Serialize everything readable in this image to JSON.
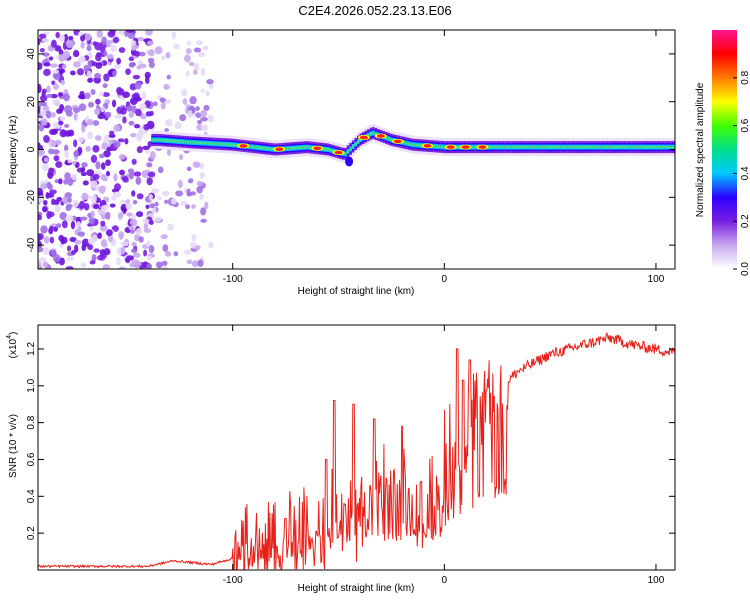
{
  "page": {
    "title": "C2E4.2026.052.23.13.E06"
  },
  "chart_data": [
    {
      "type": "heatmap",
      "id": "spectrogram",
      "title": "C2E4.2026.052.23.13.E06",
      "xlabel": "Height of straight line (km)",
      "ylabel": "Frequency (Hz)",
      "xlim": [
        -192,
        109
      ],
      "ylim": [
        -50,
        50
      ],
      "xticks": [
        -100,
        0,
        100
      ],
      "xtick_labels": [
        "-100",
        "0",
        "100"
      ],
      "yticks": [
        -40,
        -20,
        0,
        20,
        40
      ],
      "ytick_labels": [
        "-40",
        "-20",
        "0",
        "20",
        "40"
      ],
      "colorbar": {
        "label": "Normalized spectral amplitude",
        "range": [
          0.0,
          1.0
        ],
        "ticks": [
          0.0,
          0.2,
          0.4,
          0.6,
          0.8
        ],
        "tick_labels": [
          "0.0",
          "0.2",
          "0.4",
          "0.6",
          "0.8"
        ],
        "colors": [
          "#ffffff",
          "#c9a8ee",
          "#7a1fe0",
          "#2a00ff",
          "#00c8ff",
          "#00e08a",
          "#40ff00",
          "#ffff00",
          "#ff7a00",
          "#ff0000",
          "#ff1493"
        ]
      },
      "ridge_center_hz": [
        {
          "x": -135,
          "y": 4
        },
        {
          "x": -120,
          "y": 3
        },
        {
          "x": -100,
          "y": 2
        },
        {
          "x": -80,
          "y": 0
        },
        {
          "x": -65,
          "y": 1
        },
        {
          "x": -55,
          "y": 0
        },
        {
          "x": -47,
          "y": -2
        },
        {
          "x": -40,
          "y": 4
        },
        {
          "x": -34,
          "y": 7
        },
        {
          "x": -25,
          "y": 4
        },
        {
          "x": -15,
          "y": 2
        },
        {
          "x": 0,
          "y": 1
        },
        {
          "x": 20,
          "y": 1
        },
        {
          "x": 50,
          "y": 1
        },
        {
          "x": 109,
          "y": 1
        }
      ],
      "noise_region_km": [
        -192,
        -110
      ]
    },
    {
      "type": "line",
      "id": "snr",
      "xlabel": "Height of straight line (km)",
      "ylabel": "SNR (10 * v/v)",
      "yscale_label": "(x10",
      "yscale_exponent": "4",
      "xlim": [
        -192,
        109
      ],
      "ylim": [
        0.0,
        1.33
      ],
      "xticks": [
        -100,
        0,
        100
      ],
      "xtick_labels": [
        "-100",
        "0",
        "100"
      ],
      "yticks": [
        0.2,
        0.4,
        0.6,
        0.8,
        1.0,
        1.2
      ],
      "ytick_labels": [
        "0.2",
        "0.4",
        "0.6",
        "0.8",
        "1.0",
        "1.2"
      ],
      "color": "#e8201a",
      "envelope": [
        {
          "x": -192,
          "y": 0.02
        },
        {
          "x": -140,
          "y": 0.02
        },
        {
          "x": -128,
          "y": 0.05
        },
        {
          "x": -110,
          "y": 0.03
        },
        {
          "x": -95,
          "y": 0.08
        },
        {
          "x": -80,
          "y": 0.14
        },
        {
          "x": -65,
          "y": 0.18
        },
        {
          "x": -50,
          "y": 0.3
        },
        {
          "x": -35,
          "y": 0.34
        },
        {
          "x": -20,
          "y": 0.36
        },
        {
          "x": -10,
          "y": 0.28
        },
        {
          "x": 0,
          "y": 0.55
        },
        {
          "x": 10,
          "y": 0.75
        },
        {
          "x": 20,
          "y": 0.92
        },
        {
          "x": 35,
          "y": 1.08
        },
        {
          "x": 50,
          "y": 1.17
        },
        {
          "x": 65,
          "y": 1.22
        },
        {
          "x": 78,
          "y": 1.26
        },
        {
          "x": 90,
          "y": 1.22
        },
        {
          "x": 109,
          "y": 1.18
        }
      ],
      "spikes": [
        {
          "x": -75,
          "y": 0.28
        },
        {
          "x": -56,
          "y": 0.6
        },
        {
          "x": -52,
          "y": 0.92
        },
        {
          "x": -43,
          "y": 0.9
        },
        {
          "x": -33,
          "y": 0.82
        },
        {
          "x": -20,
          "y": 0.78
        },
        {
          "x": -11,
          "y": 0.48
        },
        {
          "x": 6,
          "y": 1.2
        },
        {
          "x": 9,
          "y": 1.03
        },
        {
          "x": 12,
          "y": 1.14
        }
      ]
    }
  ]
}
